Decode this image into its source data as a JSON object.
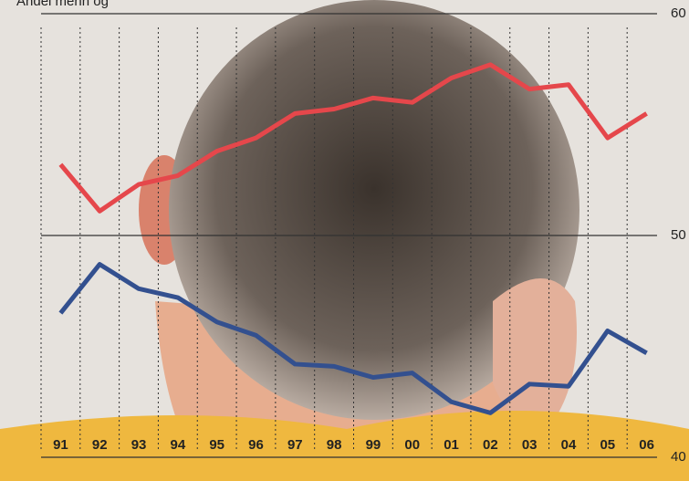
{
  "chart_data": {
    "type": "line",
    "title": "Andel menn og",
    "categories": [
      "91",
      "92",
      "93",
      "94",
      "95",
      "96",
      "97",
      "98",
      "99",
      "00",
      "01",
      "02",
      "03",
      "04",
      "05",
      "06"
    ],
    "series": [
      {
        "color": "#e5474b",
        "values": [
          53.2,
          51.1,
          52.3,
          52.7,
          53.8,
          54.4,
          55.5,
          55.7,
          56.2,
          56.0,
          57.1,
          57.7,
          56.6,
          56.8,
          54.4,
          55.5
        ]
      },
      {
        "color": "#33508f",
        "values": [
          46.5,
          48.7,
          47.6,
          47.2,
          46.1,
          45.5,
          44.2,
          44.1,
          43.6,
          43.8,
          42.5,
          42.0,
          43.3,
          43.2,
          45.7,
          44.7
        ]
      }
    ],
    "ylim": [
      40,
      60
    ],
    "yticks": [
      40,
      50,
      60
    ],
    "grid": true
  }
}
